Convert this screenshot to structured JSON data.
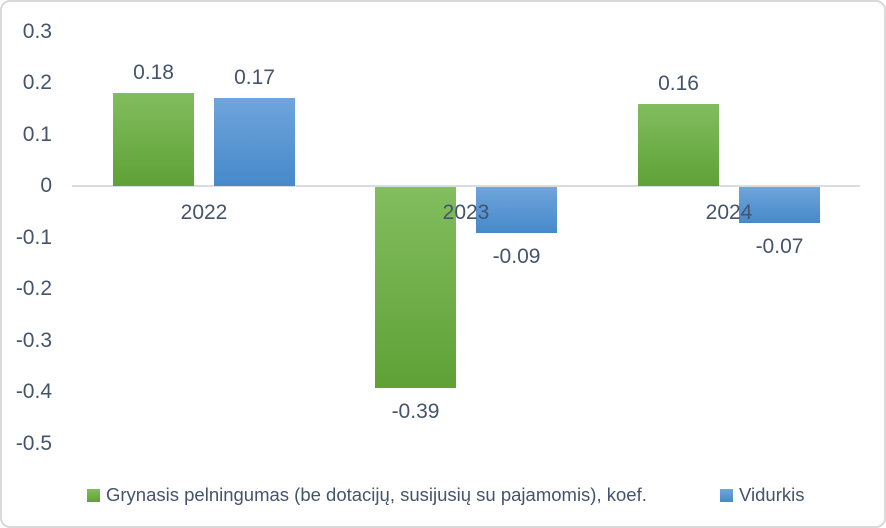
{
  "chart_data": {
    "type": "bar",
    "categories": [
      "2022",
      "2023",
      "2024"
    ],
    "series": [
      {
        "name": "Grynasis pelningumas (be dotacijų, susijusių su pajamomis), koef.",
        "color": "#70AD47",
        "color_top": "#82BD5E",
        "color_bottom": "#5FA136",
        "values": [
          0.18,
          -0.39,
          0.16
        ],
        "labels": [
          "0.18",
          "-0.39",
          "0.16"
        ]
      },
      {
        "name": "Vidurkis",
        "color": "#5B9BD5",
        "color_top": "#6FA5DC",
        "color_bottom": "#4689CA",
        "values": [
          0.17,
          -0.09,
          -0.07
        ],
        "labels": [
          "0.17",
          "-0.09",
          "-0.07"
        ]
      }
    ],
    "y_tick_labels": [
      "0.3",
      "0.2",
      "0.1",
      "0",
      "-0.1",
      "-0.2",
      "-0.3",
      "-0.4",
      "-0.5"
    ],
    "y_tick_values": [
      0.3,
      0.2,
      0.1,
      0,
      -0.1,
      -0.2,
      -0.3,
      -0.4,
      -0.5
    ],
    "ylim": [
      -0.5,
      0.3
    ],
    "title": "",
    "xlabel": "",
    "ylabel": "",
    "grid": false,
    "legend_position": "bottom"
  },
  "colors": {
    "text": "#44546A",
    "axis_line": "#D9DDE2",
    "frame_border": "#D9D9D9",
    "background": "#FFFFFF"
  }
}
